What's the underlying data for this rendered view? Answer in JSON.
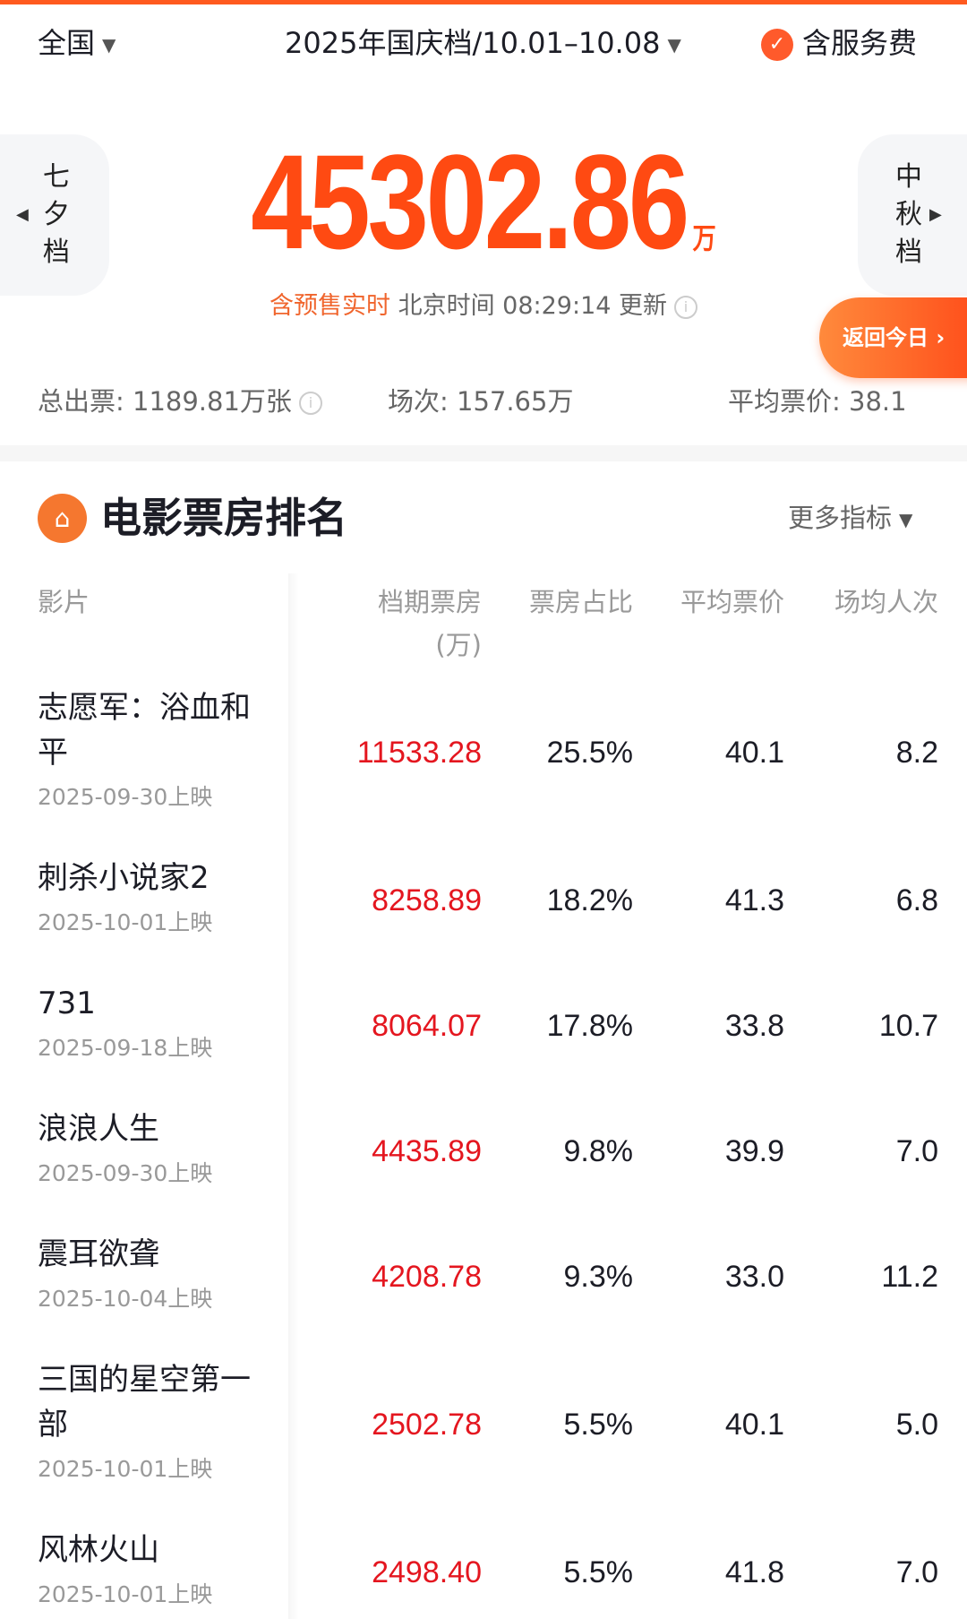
{
  "header": {
    "region": "全国",
    "period": "2025年国庆档/10.01–10.08",
    "service_fee": "含服务费"
  },
  "nav": {
    "prev": [
      "七",
      "夕",
      "档"
    ],
    "next": [
      "中",
      "秋",
      "档"
    ]
  },
  "total": {
    "value": "45302.86",
    "unit": "万",
    "presale": "含预售实时",
    "update": "北京时间 08:29:14 更新"
  },
  "return_today": "返回今日 ›",
  "stats": {
    "tickets": "总出票: 1189.81万张",
    "shows": "场次: 157.65万",
    "avg_price": "平均票价: 38.1"
  },
  "section": {
    "title": "电影票房排名",
    "more": "更多指标"
  },
  "columns": {
    "film": "影片",
    "box_office": "档期票房",
    "box_office_unit": "(万)",
    "share": "票房占比",
    "avg_price": "平均票价",
    "per_show": "场均人次"
  },
  "colors": {
    "accent": "#ff4a12",
    "box_office": "#e4161f"
  },
  "movies": [
    {
      "name": "志愿军：浴血和平",
      "release": "2025-09-30上映",
      "box_office": "11533.28",
      "share": "25.5%",
      "avg_price": "40.1",
      "per_show": "8.2"
    },
    {
      "name": "刺杀小说家2",
      "release": "2025-10-01上映",
      "box_office": "8258.89",
      "share": "18.2%",
      "avg_price": "41.3",
      "per_show": "6.8"
    },
    {
      "name": "731",
      "release": "2025-09-18上映",
      "box_office": "8064.07",
      "share": "17.8%",
      "avg_price": "33.8",
      "per_show": "10.7"
    },
    {
      "name": "浪浪人生",
      "release": "2025-09-30上映",
      "box_office": "4435.89",
      "share": "9.8%",
      "avg_price": "39.9",
      "per_show": "7.0"
    },
    {
      "name": "震耳欲聋",
      "release": "2025-10-04上映",
      "box_office": "4208.78",
      "share": "9.3%",
      "avg_price": "33.0",
      "per_show": "11.2"
    },
    {
      "name": "三国的星空第一部",
      "release": "2025-10-01上映",
      "box_office": "2502.78",
      "share": "5.5%",
      "avg_price": "40.1",
      "per_show": "5.0"
    },
    {
      "name": "风林火山",
      "release": "2025-10-01上映",
      "box_office": "2498.40",
      "share": "5.5%",
      "avg_price": "41.8",
      "per_show": "7.0"
    }
  ]
}
